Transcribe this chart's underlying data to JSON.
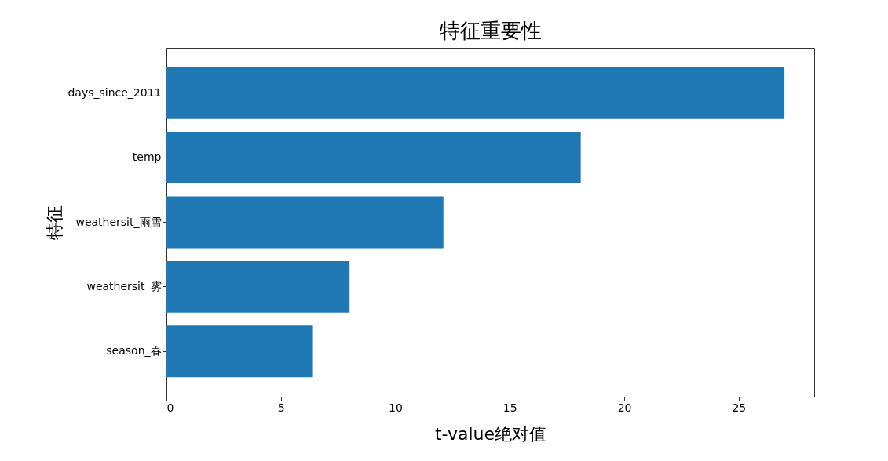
{
  "chart_data": {
    "type": "bar",
    "orientation": "horizontal",
    "title": "特征重要性",
    "xlabel": "t-value绝对值",
    "ylabel": "特征",
    "categories": [
      "days_since_2011",
      "temp",
      "weathersit_雨雪",
      "weathersit_雾",
      "season_春"
    ],
    "values": [
      27.0,
      18.1,
      12.1,
      8.0,
      6.4
    ],
    "color": "#1f77b4",
    "xlim": [
      0,
      28.3
    ],
    "xticks": [
      0,
      5,
      10,
      15,
      20,
      25
    ],
    "grid": false
  }
}
